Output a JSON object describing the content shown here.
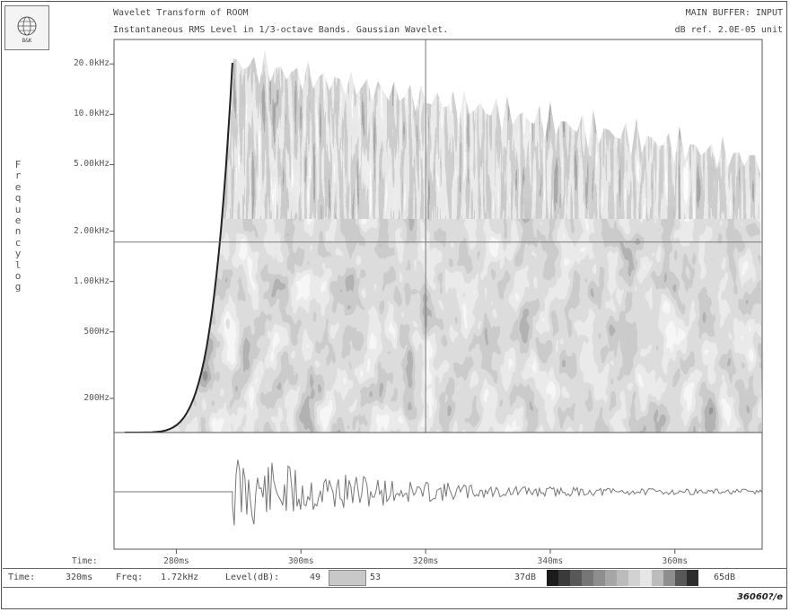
{
  "header": {
    "title": "Wavelet Transform of  ROOM",
    "subtitle": "Instantaneous RMS Level in 1/3-octave Bands. Gaussian Wavelet.",
    "buffer": "MAIN BUFFER: INPUT",
    "reference": "dB ref. 2.0E-05 unit"
  },
  "logo": {
    "icon": "company-logo-icon",
    "text": "B&K"
  },
  "chart_data": {
    "type": "heatmap",
    "title": "Wavelet Transform of  ROOM",
    "subtitle": "Instantaneous RMS Level in 1/3-octave Bands. Gaussian Wavelet.",
    "ylabel": "Frequency log",
    "xlabel": "Time:",
    "y_scale": "log",
    "y_ticks": [
      {
        "value": 200,
        "label": "200Hz"
      },
      {
        "value": 500,
        "label": "500Hz"
      },
      {
        "value": 1000,
        "label": "1.00kHz"
      },
      {
        "value": 2000,
        "label": "2.00kHz"
      },
      {
        "value": 5000,
        "label": "5.00kHz"
      },
      {
        "value": 10000,
        "label": "10.0kHz"
      },
      {
        "value": 20000,
        "label": "20.0kHz"
      }
    ],
    "x_ticks": [
      {
        "value": 280,
        "label": "280ms"
      },
      {
        "value": 300,
        "label": "300ms"
      },
      {
        "value": 320,
        "label": "320ms"
      },
      {
        "value": 340,
        "label": "340ms"
      },
      {
        "value": 360,
        "label": "360ms"
      }
    ],
    "xlim": [
      270,
      374
    ],
    "ylim": [
      125,
      28000
    ],
    "onset_ms": 289,
    "cursor": {
      "time_ms": 320,
      "freq_hz": 1720
    },
    "level_range_db": [
      37,
      65
    ],
    "colorbar_colors": [
      "#1c1c1c",
      "#3a3a3a",
      "#585858",
      "#767676",
      "#8e8e8e",
      "#a6a6a6",
      "#bcbcbc",
      "#d2d2d2",
      "#e6e6e6",
      "#bcbcbc",
      "#8e8e8e",
      "#585858",
      "#2c2c2c"
    ],
    "waveform_panel": "time signal"
  },
  "status": {
    "time_label": "Time:",
    "time_value": "320ms",
    "freq_label": "Freq:",
    "freq_value": "1.72kHz",
    "level_label": "Level(dB):",
    "level_low": "49",
    "level_high": "53",
    "scale_low": "37dB",
    "scale_high": "65dB"
  },
  "footer": {
    "code": "36060?/e"
  }
}
